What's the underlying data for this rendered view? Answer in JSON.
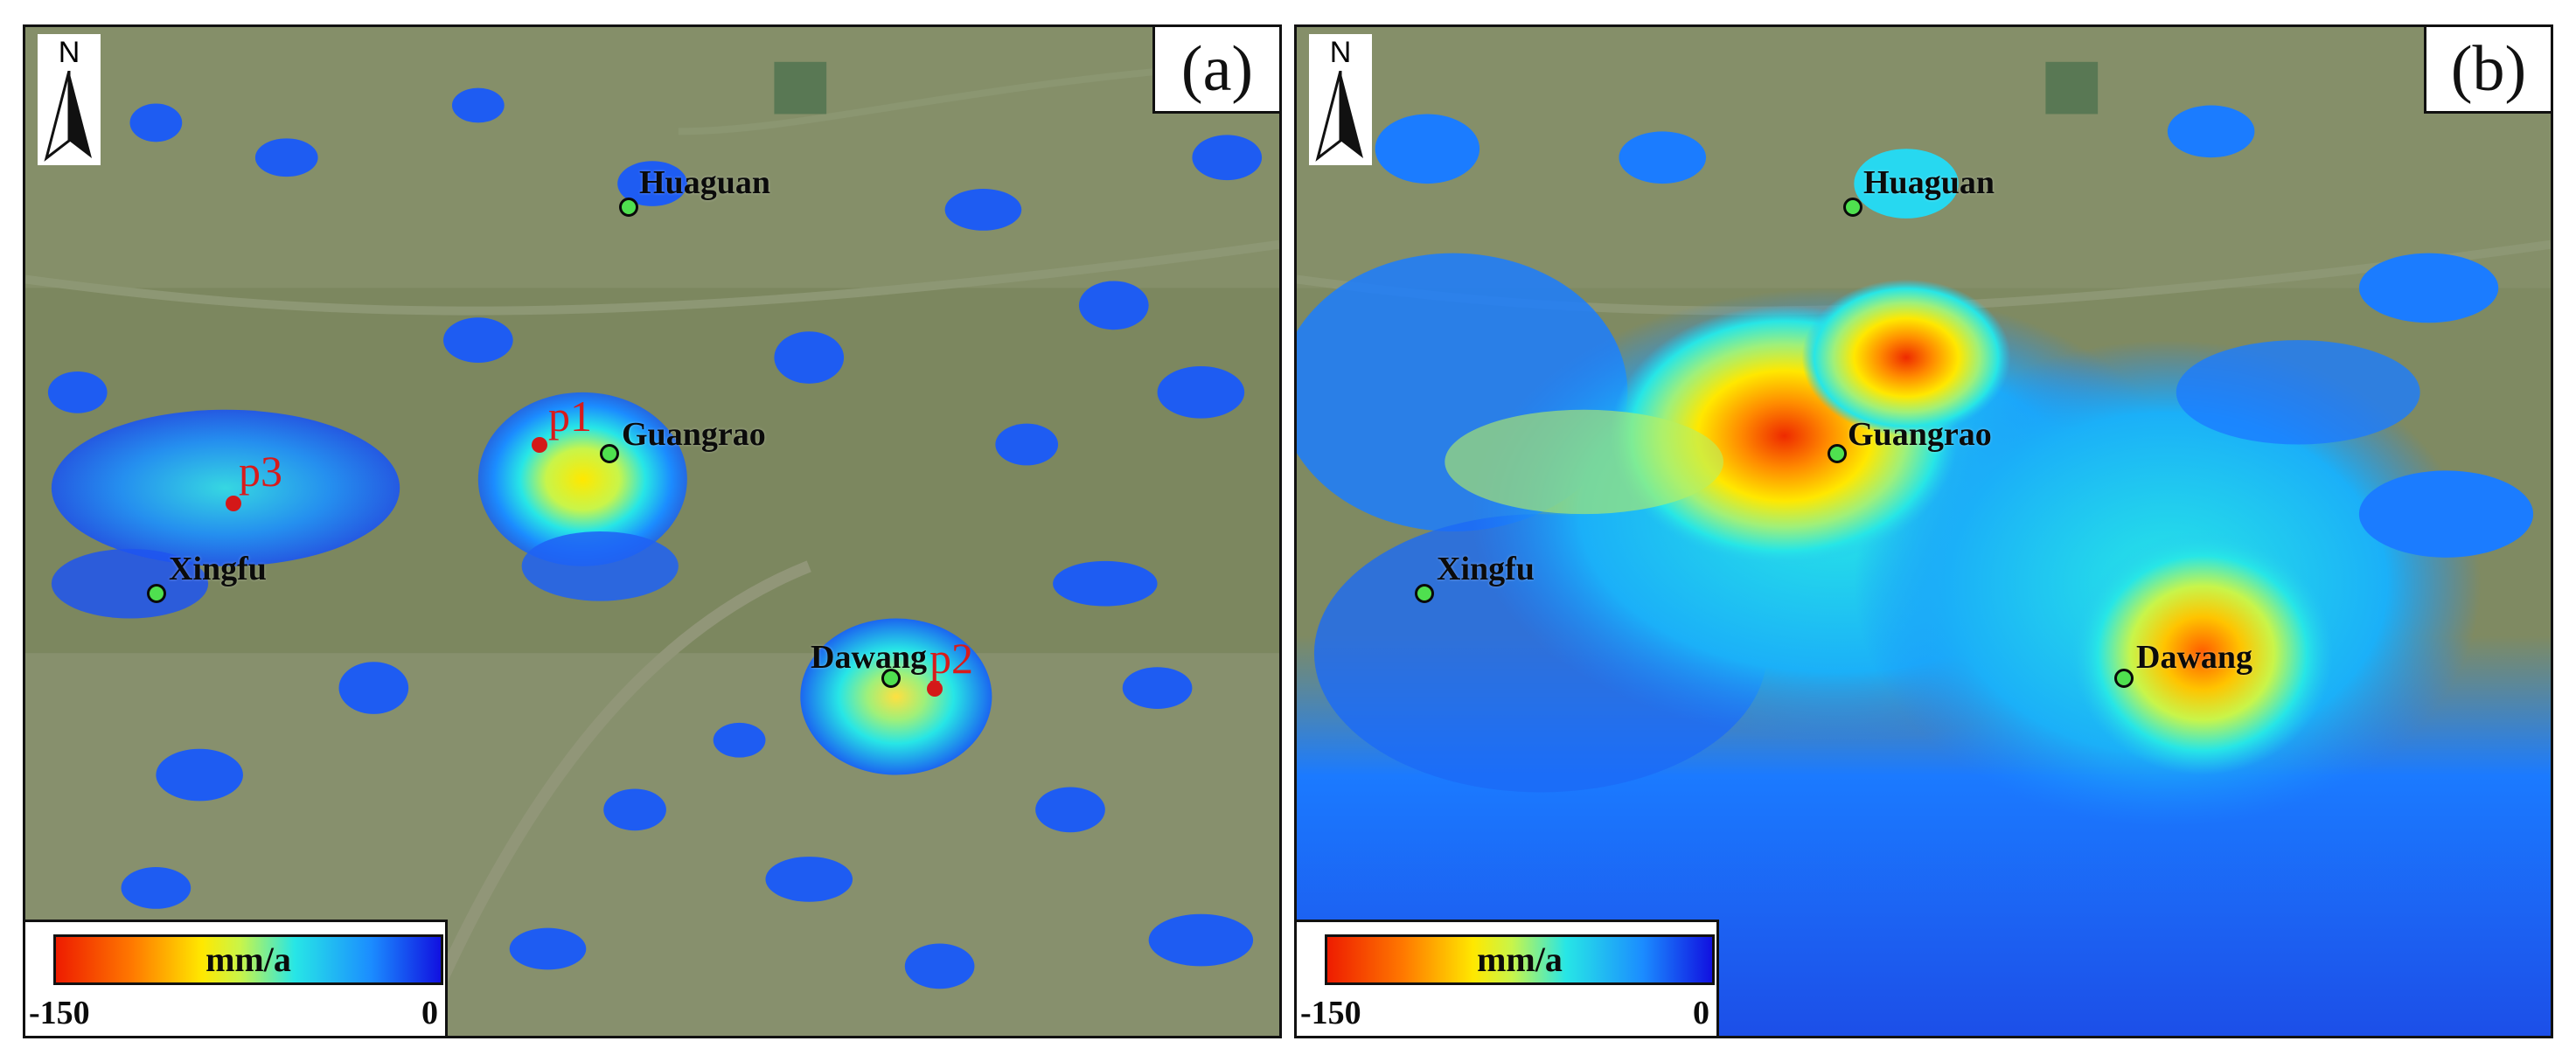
{
  "panels": {
    "a": {
      "label": "(a)",
      "north": "N",
      "towns": {
        "huaguan": "Huaguan",
        "guangrao": "Guangrao",
        "xingfu": "Xingfu",
        "dawang": "Dawang"
      },
      "points": {
        "p1": "p1",
        "p2": "p2",
        "p3": "p3"
      },
      "legend": {
        "unit": "mm/a",
        "min": "-150",
        "max": "0"
      }
    },
    "b": {
      "label": "(b)",
      "north": "N",
      "towns": {
        "huaguan": "Huaguan",
        "guangrao": "Guangrao",
        "xingfu": "Xingfu",
        "dawang": "Dawang"
      },
      "legend": {
        "unit": "mm/a",
        "min": "-150",
        "max": "0"
      }
    }
  },
  "colors": {
    "ground": "#7f8a62",
    "low": "#ee1c00",
    "mid": "#ffe800",
    "cyan": "#27e6e6",
    "high": "#1111e0",
    "town_marker": "#4fe04f",
    "point_marker": "#d41818"
  }
}
